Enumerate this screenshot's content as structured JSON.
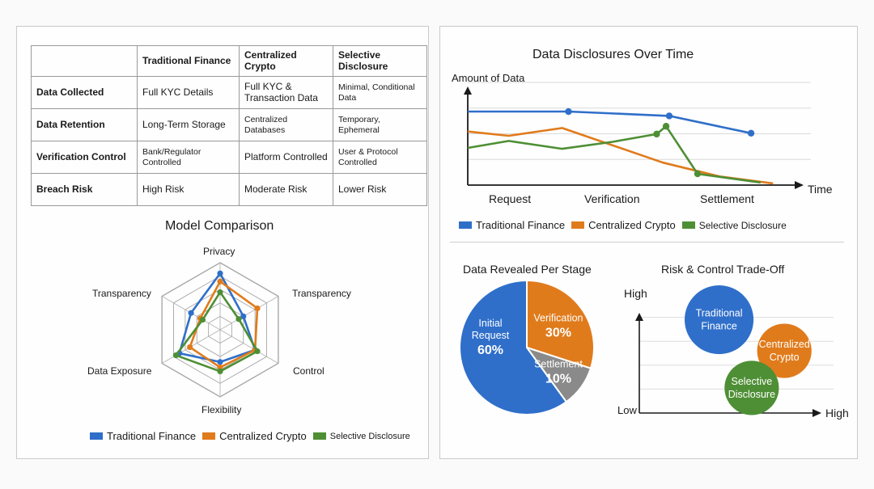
{
  "colors": {
    "traditional": "#2f6fca",
    "centralized": "#e07b1c",
    "selective": "#4e8f35",
    "grid": "#cccccc",
    "settlement_slice": "#8a8a8a"
  },
  "table": {
    "headers": [
      "",
      "Traditional Finance",
      "Centralized Crypto",
      "Selective Disclosure"
    ],
    "rows": [
      [
        "Data Collected",
        "Full KYC Details",
        "Full KYC & Transaction Data",
        "Minimal, Conditional Data"
      ],
      [
        "Data Retention",
        "Long-Term Storage",
        "Centralized Databases",
        "Temporary, Ephemeral"
      ],
      [
        "Verification Control",
        "Bank/Regulator Controlled",
        "Platform Controlled",
        "User & Protocol Controlled"
      ],
      [
        "Breach Risk",
        "High Risk",
        "Moderate Risk",
        "Lower Risk"
      ]
    ]
  },
  "chart_data": [
    {
      "type": "radar",
      "title": "Model Comparison",
      "axes": [
        "Privacy",
        "Transparency",
        "Control",
        "Flexibility",
        "Data Exposure",
        "Transparency"
      ],
      "range": [
        0,
        5
      ],
      "series": [
        {
          "name": "Traditional Finance",
          "color_key": "traditional",
          "values": [
            4.2,
            2.0,
            3.0,
            2.4,
            3.5,
            2.5
          ]
        },
        {
          "name": "Centralized Crypto",
          "color_key": "centralized",
          "values": [
            3.6,
            3.2,
            3.0,
            2.8,
            2.6,
            1.7
          ]
        },
        {
          "name": "Selective Disclosure",
          "color_key": "selective",
          "values": [
            2.8,
            1.6,
            3.2,
            3.1,
            3.8,
            1.5
          ]
        }
      ],
      "legend": [
        "Traditional Finance",
        "Centralized Crypto",
        "Selective Disclosure"
      ]
    },
    {
      "type": "line",
      "title": "Data Disclosures Over Time",
      "ylabel": "Amount of Data",
      "xlabel": "Time",
      "stage_labels": [
        "Request",
        "Verification",
        "Settlement"
      ],
      "xlim": [
        0,
        10
      ],
      "ylim": [
        0,
        10
      ],
      "series": [
        {
          "name": "Traditional Finance",
          "color_key": "traditional",
          "points": [
            [
              0,
              8.5
            ],
            [
              3.2,
              8.5
            ],
            [
              6.4,
              8.0
            ],
            [
              9.0,
              6.0
            ]
          ],
          "markers": [
            [
              3.2,
              8.5
            ],
            [
              6.4,
              8.0
            ],
            [
              9.0,
              6.0
            ]
          ]
        },
        {
          "name": "Centralized Crypto",
          "color_key": "centralized",
          "points": [
            [
              0,
              6.2
            ],
            [
              1.3,
              5.7
            ],
            [
              3.0,
              6.6
            ],
            [
              6.2,
              2.6
            ],
            [
              8.0,
              1.0
            ],
            [
              9.7,
              0.2
            ]
          ],
          "markers": []
        },
        {
          "name": "Selective Disclosure",
          "color_key": "selective",
          "points": [
            [
              0,
              4.3
            ],
            [
              1.3,
              5.1
            ],
            [
              3.0,
              4.2
            ],
            [
              4.6,
              5.0
            ],
            [
              6.0,
              5.9
            ],
            [
              6.3,
              6.8
            ],
            [
              7.3,
              1.3
            ],
            [
              9.3,
              0.3
            ]
          ],
          "markers": [
            [
              6.0,
              5.9
            ],
            [
              6.3,
              6.8
            ],
            [
              7.3,
              1.3
            ]
          ]
        }
      ],
      "legend": [
        "Traditional Finance",
        "Centralized Crypto",
        "Selective Disclosure"
      ]
    },
    {
      "type": "pie",
      "title": "Data Revealed Per Stage",
      "slices": [
        {
          "label": "Initial Request",
          "value": 60,
          "value_label": "60%",
          "color_key": "traditional"
        },
        {
          "label": "Verification",
          "value": 30,
          "value_label": "30%",
          "color_key": "centralized"
        },
        {
          "label": "Settlement",
          "value": 10,
          "value_label": "10%",
          "color_key": "settlement_slice"
        }
      ]
    },
    {
      "type": "bubble",
      "title": "Risk & Control Trade-Off",
      "y_axis_top": "High",
      "axis_origin": "Low",
      "x_axis_end": "High",
      "xlim": [
        0,
        10
      ],
      "ylim": [
        0,
        10
      ],
      "bubbles": [
        {
          "label": "Traditional Finance",
          "x": 4.4,
          "y": 7.8,
          "r": 1.9,
          "color_key": "traditional"
        },
        {
          "label": "Centralized Crypto",
          "x": 8.0,
          "y": 5.2,
          "r": 1.5,
          "color_key": "centralized"
        },
        {
          "label": "Selective Disclosure",
          "x": 6.2,
          "y": 2.1,
          "r": 1.5,
          "color_key": "selective"
        }
      ]
    }
  ]
}
